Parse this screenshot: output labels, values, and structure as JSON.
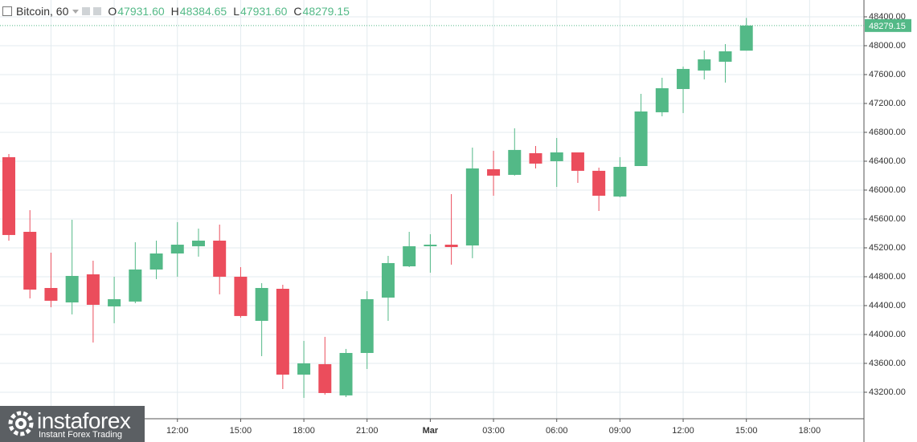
{
  "header": {
    "symbol": "Bitcoin, 60",
    "ohlc": [
      {
        "key": "O",
        "value": "47931.60"
      },
      {
        "key": "H",
        "value": "48384.65"
      },
      {
        "key": "L",
        "value": "47931.60"
      },
      {
        "key": "C",
        "value": "48279.15"
      }
    ]
  },
  "chart_data": {
    "type": "candlestick",
    "categories": [
      null,
      null,
      null,
      null,
      null,
      null,
      null,
      null,
      "12:00",
      null,
      null,
      "15:00",
      null,
      null,
      "18:00",
      null,
      null,
      "21:00",
      null,
      null,
      "Mar",
      null,
      null,
      "03:00",
      null,
      null,
      "06:00",
      null,
      null,
      "09:00",
      null,
      null,
      "12:00",
      null,
      null,
      "15:00",
      null,
      null,
      "18:00",
      null,
      null
    ],
    "open": [
      46456,
      45422,
      44644,
      44444,
      44833,
      44389,
      44456,
      44900,
      45122,
      45222,
      45300,
      44800,
      44189,
      44633,
      43444,
      43589,
      43156,
      43744,
      44511,
      44944,
      45222,
      45244,
      45233,
      46289,
      46211,
      46511,
      46400,
      46522,
      46267,
      45911,
      46333,
      47078,
      47400,
      47656,
      47778,
      47931.6,
      null,
      null,
      null,
      null,
      null
    ],
    "high": [
      46500,
      45722,
      45133,
      45589,
      45022,
      44800,
      45278,
      45300,
      45556,
      45467,
      45522,
      44933,
      44711,
      44689,
      43911,
      43967,
      43800,
      44600,
      45089,
      45422,
      45389,
      45944,
      46589,
      46544,
      46856,
      46611,
      46722,
      46522,
      46311,
      46456,
      47333,
      47556,
      47711,
      47933,
      48022,
      48384.65,
      null,
      null,
      null,
      null,
      null
    ],
    "low": [
      45300,
      44500,
      44378,
      44278,
      43889,
      44156,
      44433,
      44767,
      44800,
      45078,
      44556,
      44233,
      43700,
      43244,
      43122,
      43167,
      43133,
      43522,
      44189,
      44933,
      44856,
      44967,
      45056,
      45922,
      46200,
      46300,
      46044,
      46100,
      45711,
      45900,
      46333,
      47022,
      47067,
      47533,
      47489,
      47931.6,
      null,
      null,
      null,
      null,
      null
    ],
    "close": [
      45378,
      44622,
      44467,
      44811,
      44411,
      44489,
      44900,
      45122,
      45244,
      45300,
      44800,
      44256,
      44644,
      43444,
      43600,
      43189,
      43744,
      44489,
      44989,
      45222,
      45244,
      45211,
      46300,
      46200,
      46556,
      46367,
      46522,
      46267,
      45922,
      46322,
      47089,
      47411,
      47678,
      47811,
      47922,
      48279.15,
      null,
      null,
      null,
      null,
      null
    ],
    "up_color": "#53b987",
    "down_color": "#eb4d5c",
    "ylim": [
      42833,
      48633
    ],
    "yticks": [
      {
        "value": 43200,
        "label": "43200.00"
      },
      {
        "value": 43600,
        "label": "43600.00"
      },
      {
        "value": 44000,
        "label": "44000.00"
      },
      {
        "value": 44400,
        "label": "44400.00"
      },
      {
        "value": 44800,
        "label": "44800.00"
      },
      {
        "value": 45200,
        "label": "45200.00"
      },
      {
        "value": 45600,
        "label": "45600.00"
      },
      {
        "value": 46000,
        "label": "46000.00"
      },
      {
        "value": 46400,
        "label": "46400.00"
      },
      {
        "value": 46800,
        "label": "46800.00"
      },
      {
        "value": 47200,
        "label": "47200.00"
      },
      {
        "value": 47600,
        "label": "47600.00"
      },
      {
        "value": 48000,
        "label": "48000.00"
      },
      {
        "value": 48400,
        "label": "48400.00"
      }
    ],
    "grid": true,
    "last_price_label": "48279.15"
  },
  "logo": {
    "name": "instaforex",
    "tagline": "Instant Forex Trading"
  }
}
